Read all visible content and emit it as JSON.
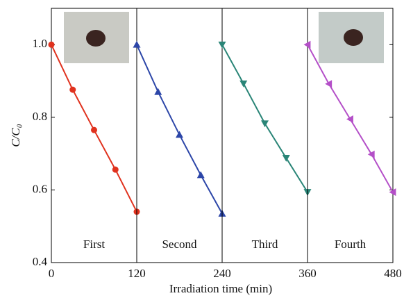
{
  "chart_data": {
    "type": "line",
    "xlabel": "Irradiation time (min)",
    "ylabel": "C/C₀",
    "xlim": [
      0,
      480
    ],
    "ylim": [
      0.4,
      1.1
    ],
    "xticks": [
      0,
      120,
      240,
      360,
      480
    ],
    "yticks": [
      0.4,
      0.6,
      0.8,
      {
        "value": 1,
        "label": "1.0"
      }
    ],
    "annotations": [
      "First",
      "Second",
      "Third",
      "Fourth"
    ],
    "series": [
      {
        "color": "#e0321e",
        "marker": "circle",
        "x": [
          0,
          30,
          60,
          90,
          120
        ],
        "values": [
          1.0,
          0.876,
          0.765,
          0.656,
          0.54
        ]
      },
      {
        "color": "#2c46a8",
        "marker": "triangle-up",
        "x": [
          120,
          150,
          180,
          210,
          240
        ],
        "values": [
          1.0,
          0.87,
          0.752,
          0.641,
          0.535
        ]
      },
      {
        "color": "#2a8577",
        "marker": "triangle-down",
        "x": [
          240,
          270,
          300,
          330,
          360
        ],
        "values": [
          1.0,
          0.893,
          0.783,
          0.688,
          0.594
        ]
      },
      {
        "color": "#b44fc8",
        "marker": "triangle-left",
        "x": [
          360,
          390,
          420,
          450,
          480
        ],
        "values": [
          1.0,
          0.892,
          0.795,
          0.698,
          0.594
        ]
      }
    ]
  }
}
